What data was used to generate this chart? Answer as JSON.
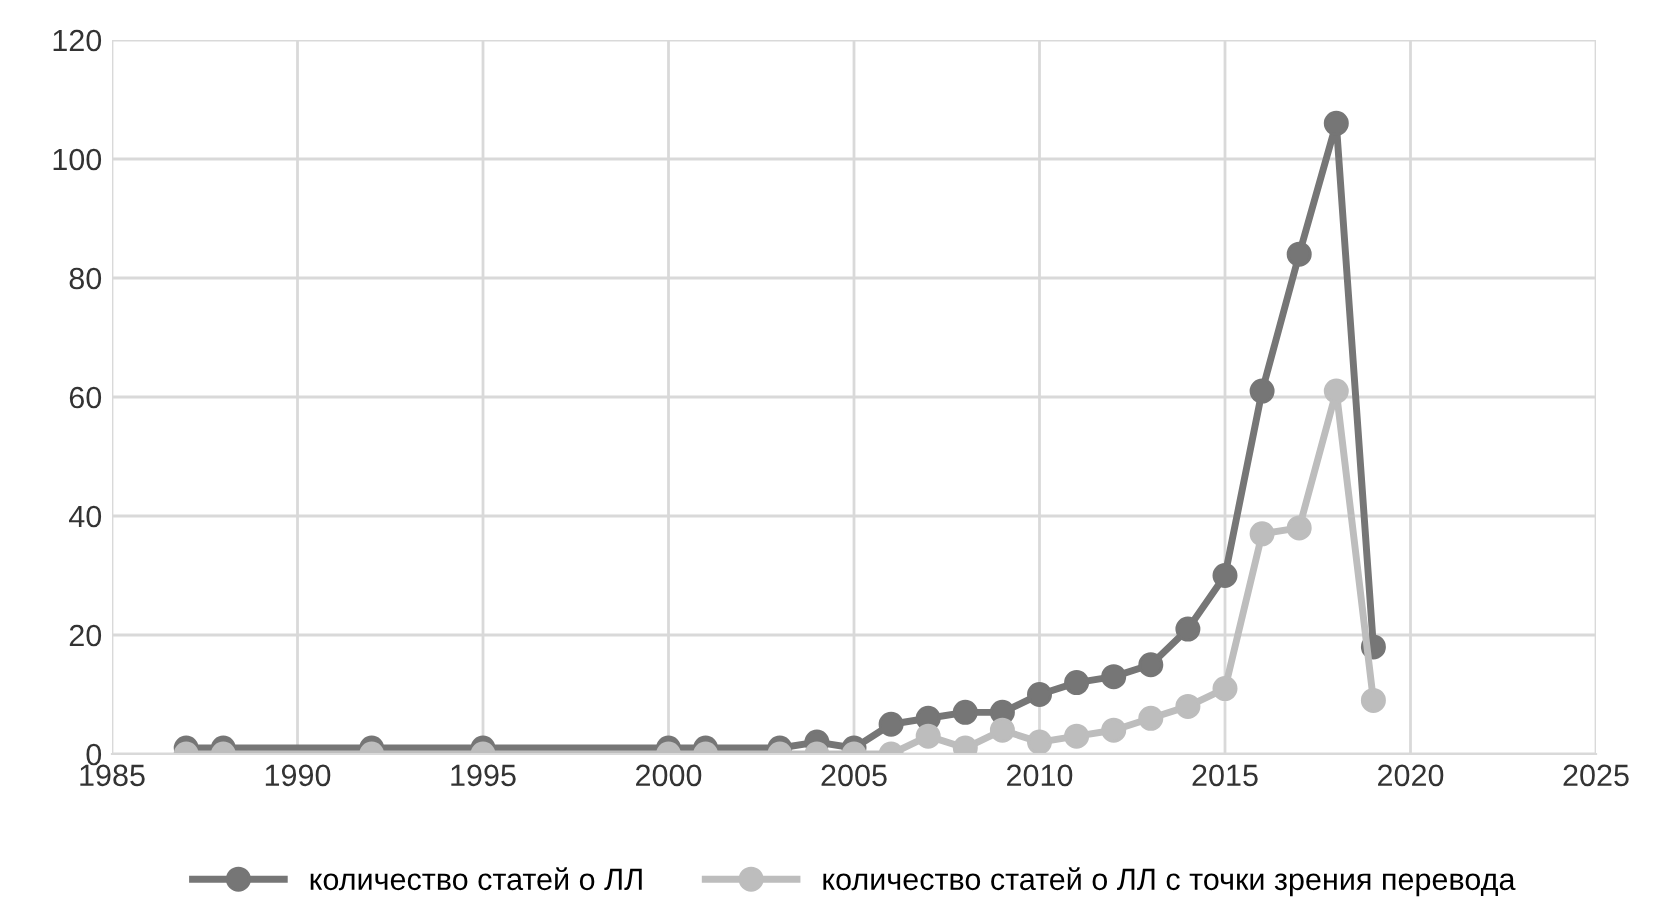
{
  "chart_data": {
    "type": "line",
    "x": [
      1987,
      1988,
      1992,
      1995,
      2000,
      2001,
      2003,
      2004,
      2005,
      2006,
      2007,
      2008,
      2009,
      2010,
      2011,
      2012,
      2013,
      2014,
      2015,
      2016,
      2017,
      2018,
      2019
    ],
    "series": [
      {
        "name": "количество статей о ЛЛ",
        "color": "#767676",
        "values": [
          1,
          1,
          1,
          1,
          1,
          1,
          1,
          2,
          1,
          5,
          6,
          7,
          7,
          10,
          12,
          13,
          15,
          21,
          30,
          61,
          84,
          106,
          18
        ]
      },
      {
        "name": "количество статей о ЛЛ с точки зрения перевода",
        "color": "#bdbdbd",
        "values": [
          0,
          0,
          0,
          0,
          0,
          0,
          0,
          0,
          0,
          0,
          3,
          1,
          4,
          2,
          3,
          4,
          6,
          8,
          11,
          37,
          38,
          61,
          9
        ]
      }
    ],
    "xlim": [
      1985,
      2025
    ],
    "xticks": [
      1985,
      1990,
      1995,
      2000,
      2005,
      2010,
      2015,
      2020,
      2025
    ],
    "ylim": [
      0,
      120
    ],
    "yticks": [
      0,
      20,
      40,
      60,
      80,
      100,
      120
    ],
    "grid": true,
    "legend": "bottom",
    "marker": "circle",
    "line_style": "solid"
  }
}
